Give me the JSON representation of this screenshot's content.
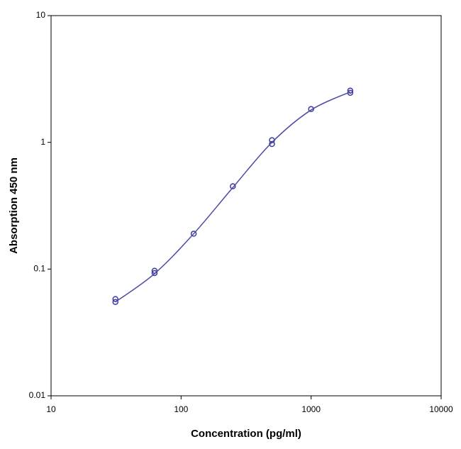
{
  "chart_data": {
    "type": "scatter",
    "x_label": "Concentration (pg/ml)",
    "y_label": "Absorption 450 nm",
    "xscale": "log",
    "yscale": "log",
    "xlim": [
      10,
      10000
    ],
    "ylim": [
      0.01,
      10
    ],
    "xticks": [
      10,
      100,
      1000,
      10000
    ],
    "yticks": [
      0.01,
      0.1,
      1,
      10
    ],
    "series": [
      {
        "type": "scatter",
        "color": "#3b3b9e",
        "x": [
          31.25,
          31.25,
          62.5,
          62.5,
          125,
          250,
          500,
          500,
          1000,
          2000,
          2000
        ],
        "values": [
          0.058,
          0.055,
          0.097,
          0.093,
          0.19,
          0.45,
          1.04,
          0.97,
          1.83,
          2.56,
          2.46
        ]
      },
      {
        "type": "line",
        "color": "#4a4aa8",
        "x": [
          31.25,
          62.5,
          125,
          250,
          500,
          1000,
          2000
        ],
        "values": [
          0.055,
          0.092,
          0.19,
          0.44,
          1.0,
          1.8,
          2.5
        ]
      }
    ]
  }
}
